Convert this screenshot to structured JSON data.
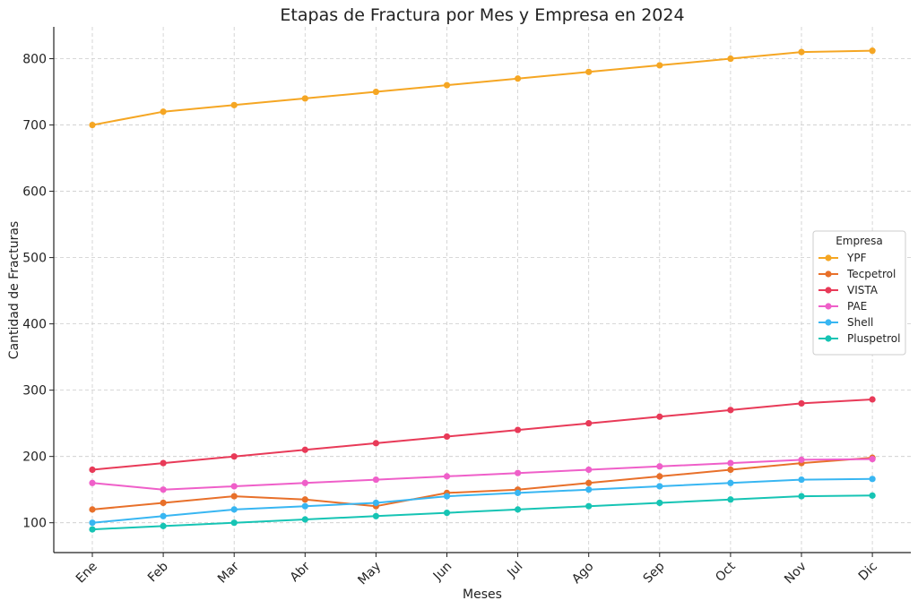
{
  "chart_data": {
    "type": "line",
    "title": "Etapas de Fractura por Mes y Empresa en 2024",
    "xlabel": "Meses",
    "ylabel": "Cantidad de Fracturas",
    "categories": [
      "Ene",
      "Feb",
      "Mar",
      "Abr",
      "May",
      "Jun",
      "Jul",
      "Ago",
      "Sep",
      "Oct",
      "Nov",
      "Dic"
    ],
    "ylim": [
      55,
      848
    ],
    "yticks": [
      100,
      200,
      300,
      400,
      500,
      600,
      700,
      800
    ],
    "grid": true,
    "legend": {
      "title": "Empresa",
      "placement": "center-right"
    },
    "series": [
      {
        "name": "YPF",
        "color": "#f5a623",
        "values": [
          700,
          720,
          730,
          740,
          750,
          760,
          770,
          780,
          790,
          800,
          810,
          812
        ]
      },
      {
        "name": "Tecpetrol",
        "color": "#e8702a",
        "values": [
          120,
          130,
          140,
          135,
          125,
          145,
          150,
          160,
          170,
          180,
          190,
          198
        ]
      },
      {
        "name": "VISTA",
        "color": "#e83a58",
        "values": [
          180,
          190,
          200,
          210,
          220,
          230,
          240,
          250,
          260,
          270,
          280,
          286
        ]
      },
      {
        "name": "PAE",
        "color": "#ef5fc9",
        "values": [
          160,
          150,
          155,
          160,
          165,
          170,
          175,
          180,
          185,
          190,
          195,
          196
        ]
      },
      {
        "name": "Shell",
        "color": "#38b6f2",
        "values": [
          100,
          110,
          120,
          125,
          130,
          140,
          145,
          150,
          155,
          160,
          165,
          166
        ]
      },
      {
        "name": "Pluspetrol",
        "color": "#16c4b4",
        "values": [
          90,
          95,
          100,
          105,
          110,
          115,
          120,
          125,
          130,
          135,
          140,
          141
        ]
      }
    ]
  }
}
